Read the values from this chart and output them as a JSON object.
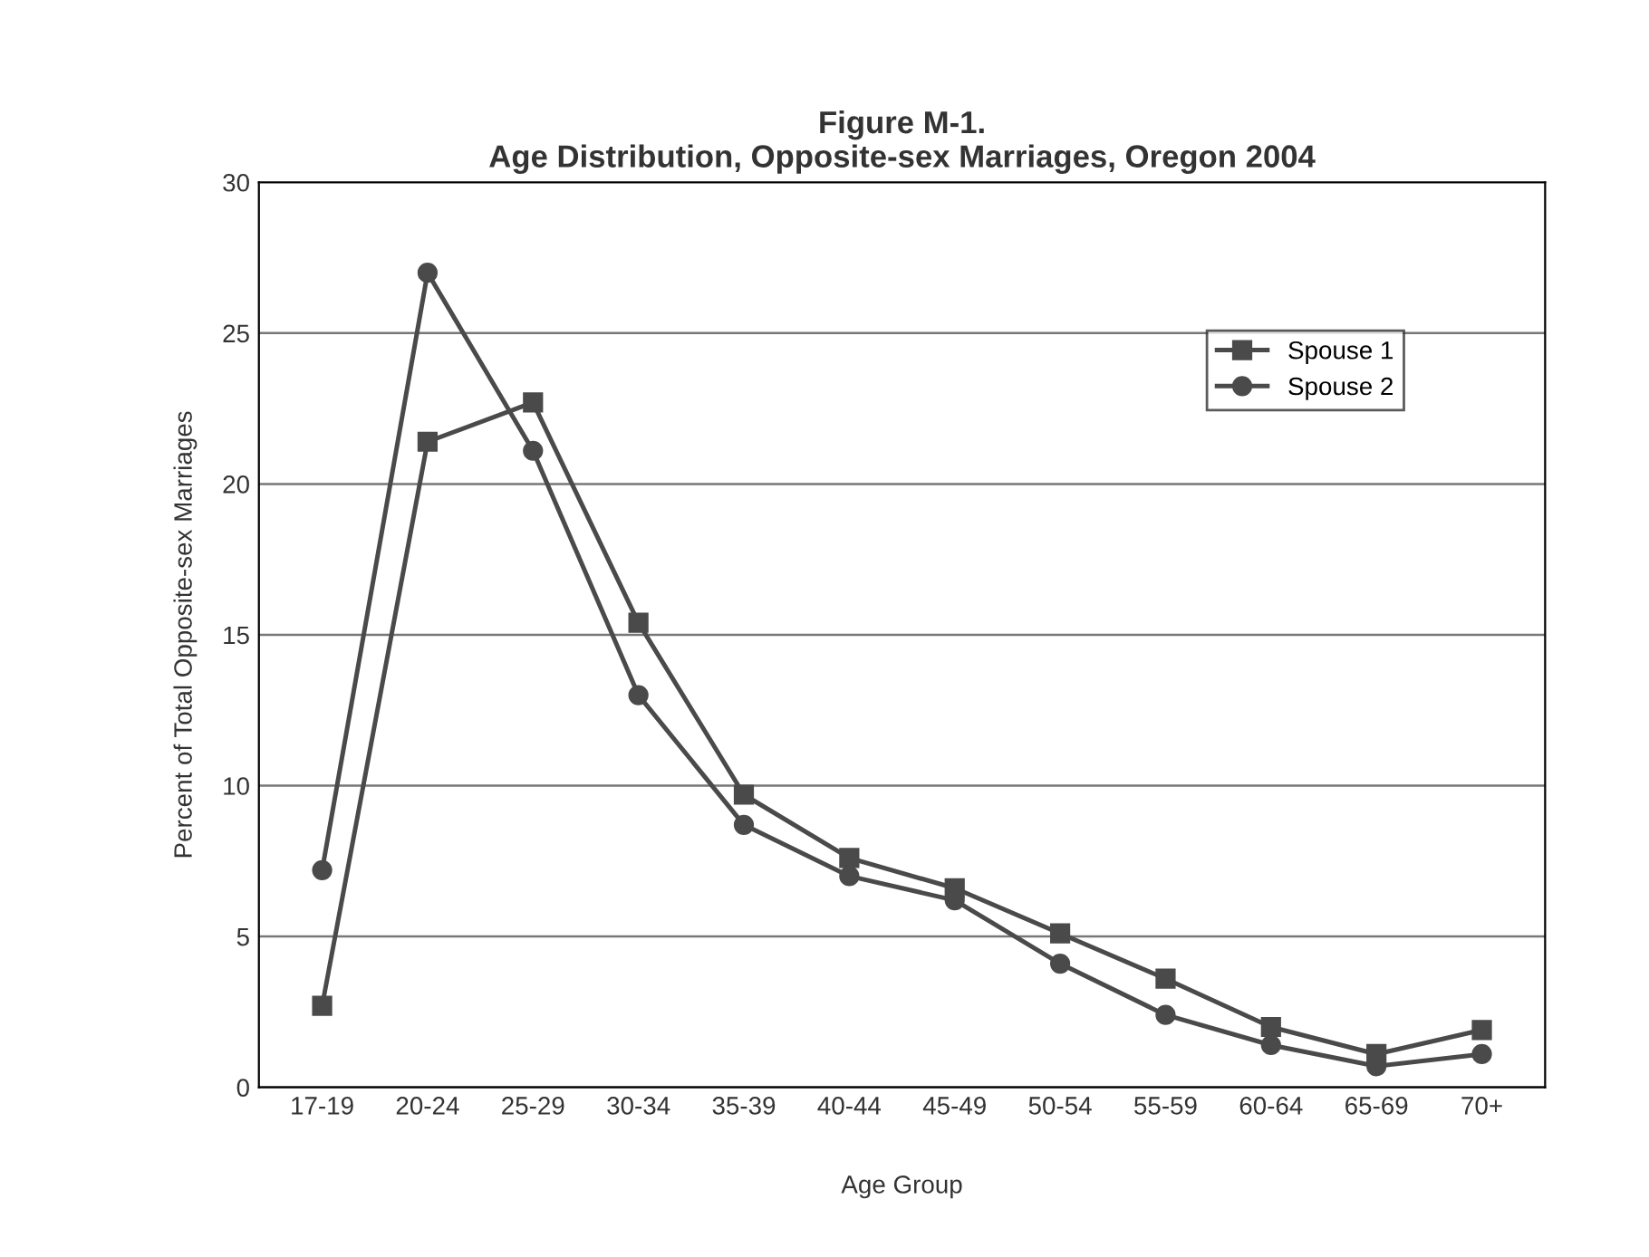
{
  "chart_data": {
    "type": "line",
    "title": "Figure M-1.\nAge Distribution, Opposite-sex Marriages, Oregon 2004",
    "xlabel": "Age Group",
    "ylabel": "Percent of Total Opposite-sex Marriages",
    "categories": [
      "17-19",
      "20-24",
      "25-29",
      "30-34",
      "35-39",
      "40-44",
      "45-49",
      "50-54",
      "55-59",
      "60-64",
      "65-69",
      "70+"
    ],
    "series": [
      {
        "name": "Spouse 1",
        "color": "#4a4a4a",
        "marker": "square",
        "values": [
          2.7,
          21.4,
          22.7,
          15.4,
          9.7,
          7.6,
          6.6,
          5.1,
          3.6,
          2.0,
          1.1,
          1.9
        ]
      },
      {
        "name": "Spouse 2",
        "color": "#4a4a4a",
        "marker": "circle",
        "values": [
          7.2,
          27.0,
          21.1,
          13.0,
          8.7,
          7.0,
          6.2,
          4.1,
          2.4,
          1.4,
          0.7,
          1.1
        ]
      }
    ],
    "ylim": [
      0,
      30
    ],
    "yticks": [
      0,
      5,
      10,
      15,
      20,
      25,
      30
    ],
    "grid": "y",
    "legend": "top right",
    "line_style": "solid"
  }
}
